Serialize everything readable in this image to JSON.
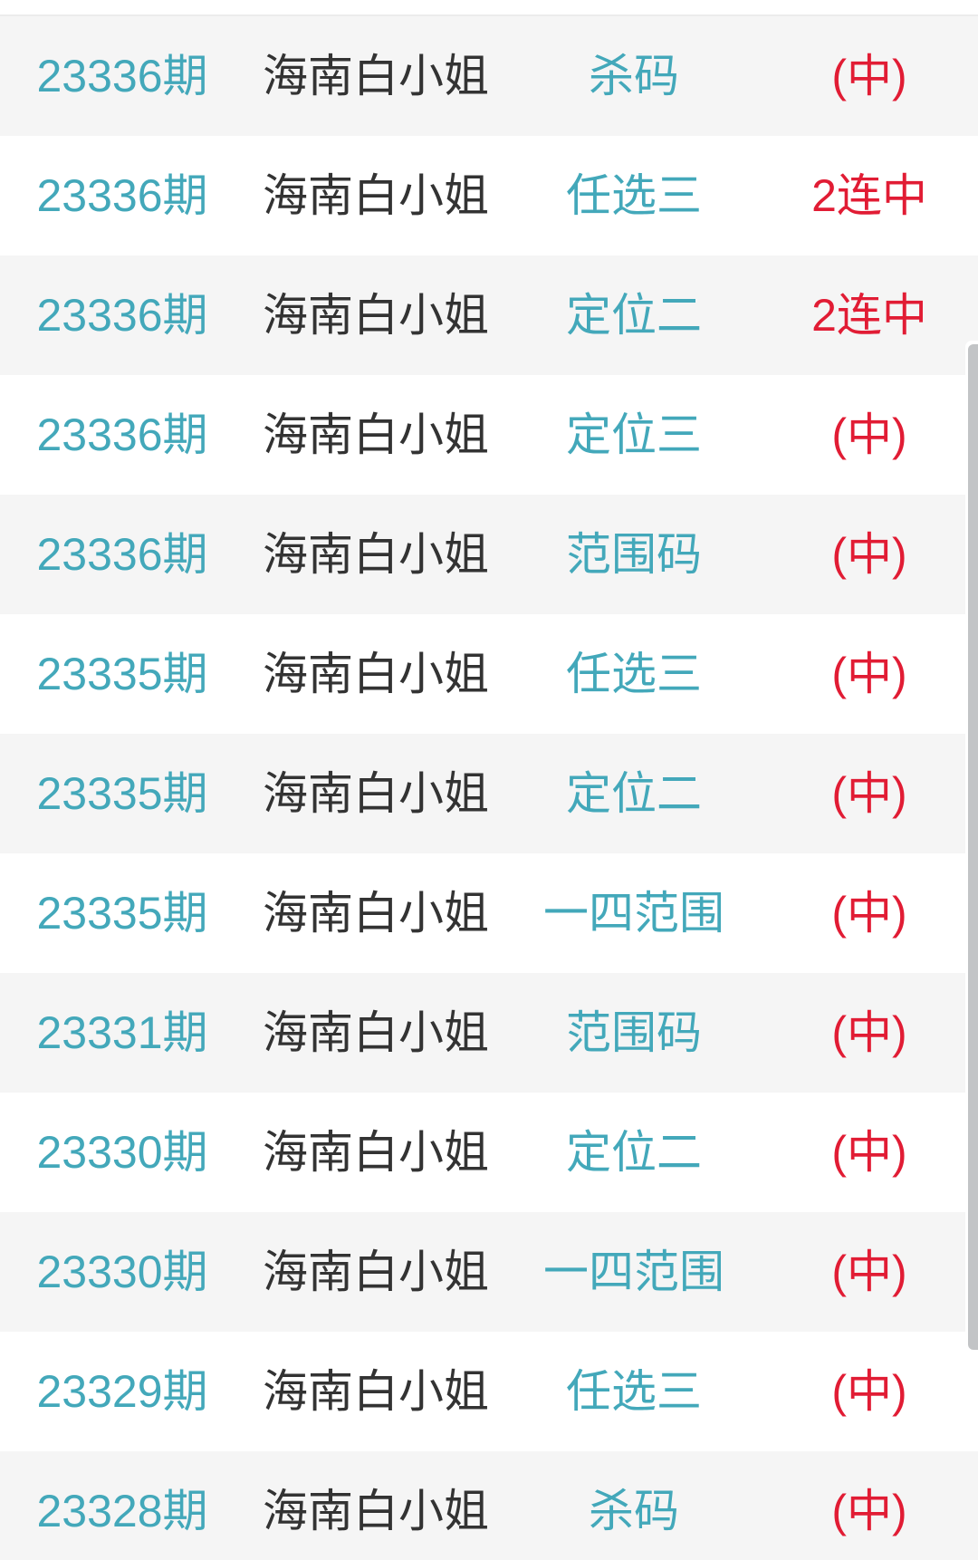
{
  "page": {
    "background": "#ffffff",
    "row_shaded_color": "#f5f5f5",
    "row_plain_color": "#ffffff",
    "issue_color": "#43a8ba",
    "play_color": "#43a8ba",
    "source_color": "#333333",
    "result_color": "#e11c34",
    "scrollbar_color": "#c2c4c6"
  },
  "table": {
    "rows": [
      {
        "issue": "23336期",
        "source": "海南白小姐",
        "play": "杀码",
        "result": "(中)"
      },
      {
        "issue": "23336期",
        "source": "海南白小姐",
        "play": "任选三",
        "result": "2连中"
      },
      {
        "issue": "23336期",
        "source": "海南白小姐",
        "play": "定位二",
        "result": "2连中"
      },
      {
        "issue": "23336期",
        "source": "海南白小姐",
        "play": "定位三",
        "result": "(中)"
      },
      {
        "issue": "23336期",
        "source": "海南白小姐",
        "play": "范围码",
        "result": "(中)"
      },
      {
        "issue": "23335期",
        "source": "海南白小姐",
        "play": "任选三",
        "result": "(中)"
      },
      {
        "issue": "23335期",
        "source": "海南白小姐",
        "play": "定位二",
        "result": "(中)"
      },
      {
        "issue": "23335期",
        "source": "海南白小姐",
        "play": "一四范围",
        "result": "(中)"
      },
      {
        "issue": "23331期",
        "source": "海南白小姐",
        "play": "范围码",
        "result": "(中)"
      },
      {
        "issue": "23330期",
        "source": "海南白小姐",
        "play": "定位二",
        "result": "(中)"
      },
      {
        "issue": "23330期",
        "source": "海南白小姐",
        "play": "一四范围",
        "result": "(中)"
      },
      {
        "issue": "23329期",
        "source": "海南白小姐",
        "play": "任选三",
        "result": "(中)"
      },
      {
        "issue": "23328期",
        "source": "海南白小姐",
        "play": "杀码",
        "result": "(中)"
      }
    ]
  }
}
